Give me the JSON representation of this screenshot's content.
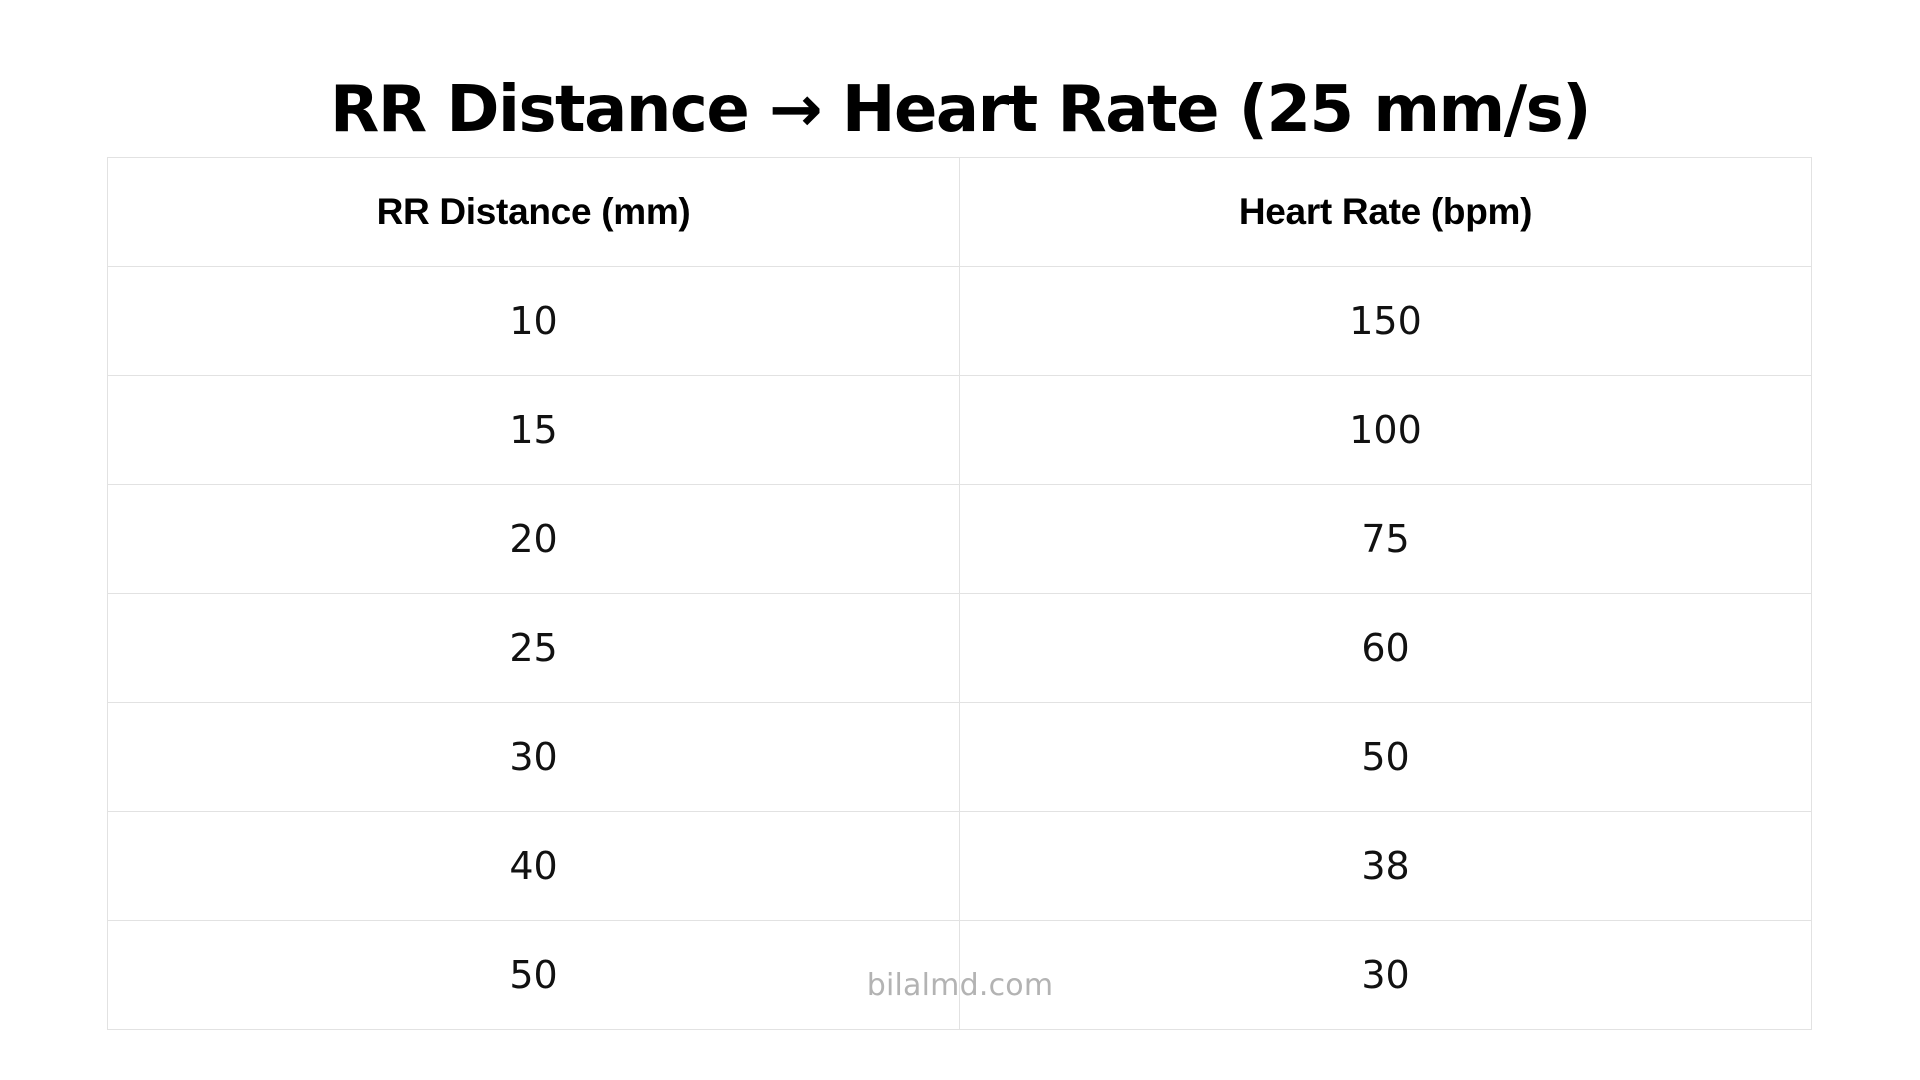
{
  "title": "RR Distance → Heart Rate (25 mm/s)",
  "table": {
    "headers": [
      "RR Distance (mm)",
      "Heart Rate (bpm)"
    ],
    "rows": [
      [
        "10",
        "150"
      ],
      [
        "15",
        "100"
      ],
      [
        "20",
        "75"
      ],
      [
        "25",
        "60"
      ],
      [
        "30",
        "50"
      ],
      [
        "40",
        "38"
      ],
      [
        "50",
        "30"
      ]
    ]
  },
  "watermark": "bilalmd.com",
  "colors": {
    "border": "#e2e2e2",
    "text": "#000000",
    "watermark": "#b3b3b3",
    "background": "#ffffff"
  }
}
